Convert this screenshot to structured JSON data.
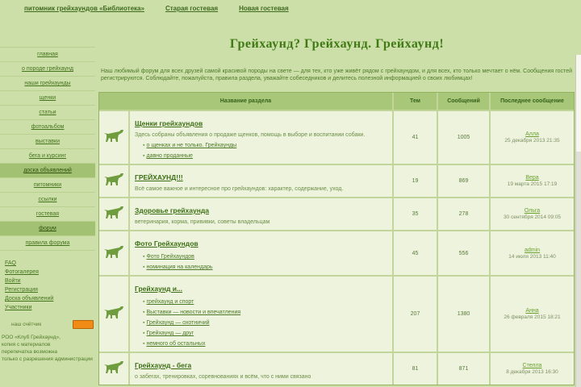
{
  "colors": {
    "page_bg": "#cddfa9",
    "table_bg": "#edf3dd",
    "header_bg": "#a9c779",
    "accent_green": "#3c6e14",
    "counter_orange": "#f08c15"
  },
  "icons": {
    "row_icon": "greyhound-dog-icon",
    "counter_badge": "counter-badge-icon"
  },
  "top_nav": {
    "links": [
      "питомник грейхаундов «Библиотека»",
      "Старая гостевая",
      "Новая гостевая"
    ]
  },
  "header": {
    "title": "Грейхаунд? Грейхаунд. Грейхаунд!"
  },
  "sidebar": {
    "menu": [
      {
        "label": "главная",
        "active": false
      },
      {
        "label": "о породе грейхаунд",
        "active": false
      },
      {
        "label": "наши грейхаунды",
        "active": false
      },
      {
        "label": "щенки",
        "active": false
      },
      {
        "label": "статьи",
        "active": false
      },
      {
        "label": "фотоальбом",
        "active": false
      },
      {
        "label": "выставки",
        "active": false
      },
      {
        "label": "бега и курсинг",
        "active": false
      },
      {
        "label": "доска объявлений",
        "active": true
      },
      {
        "label": "питомники",
        "active": false
      },
      {
        "label": "ссылки",
        "active": false
      },
      {
        "label": "гостевая",
        "active": false
      },
      {
        "label": "форум",
        "active": true
      },
      {
        "label": "правила форума",
        "active": false
      }
    ],
    "links2": [
      "FAQ",
      "Фотогалерея",
      "Войти",
      "Регистрация",
      "Доска объявлений",
      "Участники"
    ],
    "counter_label": "наш счётчик",
    "footer_lines": [
      "РОО «Клуб Грейхаунд»,",
      "копия с материалов",
      "перепечатка возможна",
      "только с разрешения администрации"
    ]
  },
  "main": {
    "intro": "Наш любимый форум для всех друзей самой красивой породы на свете — для тех, кто уже живёт рядом с грейхаундом, и для всех, кто только мечтает о нём. Сообщения гостей регистрируются. Соблюдайте, пожалуйста, правила раздела, уважайте собеседников и делитесь полезной информацией о своих любимцах!",
    "table": {
      "headers": [
        "Название раздела",
        "Тем",
        "Сообщений",
        "Последнее сообщение"
      ],
      "rows": [
        {
          "title": "Щенки грейхаундов",
          "desc": "Здесь собраны объявления о продаже щенков, помощь в выборе и воспитании собаки.",
          "subforums": [
            "о щенках и не только. Грейхаунды",
            "давно проданные"
          ],
          "topics": "41",
          "posts": "1005",
          "last_user": "Алла",
          "last_date": "25 декабря 2013 21:35"
        },
        {
          "title": "ГРЕЙХАУНД!!!",
          "desc": "Всё самое важное и интересное про грейхаундов: характер, содержание, уход.",
          "subforums": [],
          "topics": "19",
          "posts": "869",
          "last_user": "Вера",
          "last_date": "19 марта 2015 17:19"
        },
        {
          "title": "Здоровье грейхаунда",
          "desc": "ветеринария, корма, прививки, советы владельцам",
          "subforums": [],
          "topics": "35",
          "posts": "278",
          "last_user": "Ольга",
          "last_date": "30 сентября 2014 09:05"
        },
        {
          "title": "Фото Грейхаундов",
          "desc": "",
          "subforums": [
            "Фото Грейхаундов",
            "номинация на календарь"
          ],
          "topics": "45",
          "posts": "556",
          "last_user": "admin",
          "last_date": "14 июля 2013 11:40"
        },
        {
          "title": "Грейхаунд и...",
          "desc": "",
          "subforums": [
            "грейхаунд и спорт",
            "Выставки — новости и впечатления",
            "Грейхаунд — охотничий",
            "Грейхаунд — друг",
            "немного об остальных"
          ],
          "topics": "207",
          "posts": "1380",
          "last_user": "Анна",
          "last_date": "26 февраля 2015 18:21"
        },
        {
          "title": "Грейхаунд - бега",
          "desc": "о забегах, тренировках, соревнованиях и всём, что с ними связано",
          "subforums": [],
          "topics": "81",
          "posts": "871",
          "last_user": "Стелла",
          "last_date": "8 декабря 2013 16:30"
        }
      ]
    }
  }
}
